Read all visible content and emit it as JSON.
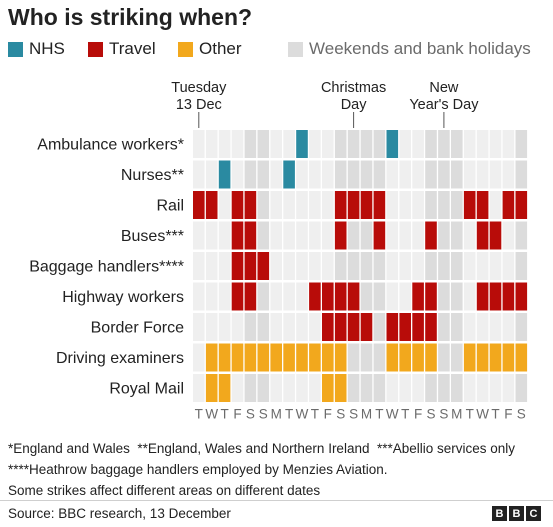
{
  "title": "Who is striking when?",
  "legend": [
    {
      "label": "NHS",
      "color": "#2a8aa1",
      "key": "nhs"
    },
    {
      "label": "Travel",
      "color": "#b80c09",
      "key": "travel"
    },
    {
      "label": "Other",
      "color": "#f2a81d",
      "key": "other"
    },
    {
      "label": "Weekends and bank holidays",
      "color": "#dcdcdc",
      "key": "holiday"
    }
  ],
  "chart_data": {
    "type": "heatmap",
    "title": "Who is striking when?",
    "columns": [
      "T",
      "W",
      "T",
      "F",
      "S",
      "S",
      "M",
      "T",
      "W",
      "T",
      "F",
      "S",
      "S",
      "M",
      "T",
      "W",
      "T",
      "F",
      "S",
      "S",
      "M",
      "T",
      "W",
      "T",
      "F",
      "S"
    ],
    "column_dates": [
      "2022-12-13",
      "2022-12-14",
      "2022-12-15",
      "2022-12-16",
      "2022-12-17",
      "2022-12-18",
      "2022-12-19",
      "2022-12-20",
      "2022-12-21",
      "2022-12-22",
      "2022-12-23",
      "2022-12-24",
      "2022-12-25",
      "2022-12-26",
      "2022-12-27",
      "2022-12-28",
      "2022-12-29",
      "2022-12-30",
      "2022-12-31",
      "2023-01-01",
      "2023-01-02",
      "2023-01-03",
      "2023-01-04",
      "2023-01-05",
      "2023-01-06",
      "2023-01-07"
    ],
    "weekends_and_bank_holidays": [
      4,
      5,
      11,
      12,
      13,
      14,
      18,
      19,
      20,
      25
    ],
    "date_markers": [
      {
        "column": 0,
        "lines": [
          "Tuesday",
          "13 Dec"
        ]
      },
      {
        "column": 12,
        "lines": [
          "Christmas",
          "Day"
        ]
      },
      {
        "column": 19,
        "lines": [
          "New",
          "Year's Day"
        ]
      }
    ],
    "rows": [
      {
        "label": "Ambulance workers*",
        "category": "nhs",
        "strike_days": [
          8,
          15
        ]
      },
      {
        "label": "Nurses**",
        "category": "nhs",
        "strike_days": [
          2,
          7
        ]
      },
      {
        "label": "Rail",
        "category": "travel",
        "strike_days": [
          0,
          1,
          3,
          4,
          11,
          12,
          13,
          14,
          21,
          22,
          24,
          25
        ]
      },
      {
        "label": "Buses***",
        "category": "travel",
        "strike_days": [
          3,
          4,
          11,
          14,
          18,
          22,
          23
        ]
      },
      {
        "label": "Baggage handlers****",
        "category": "other",
        "color_category": "travel",
        "strike_days": [
          3,
          4,
          5
        ]
      },
      {
        "label": "Highway workers",
        "category": "other",
        "color_category": "travel",
        "strike_days": [
          3,
          4,
          9,
          10,
          11,
          12,
          17,
          18,
          22,
          23,
          24,
          25
        ]
      },
      {
        "label": "Border Force",
        "category": "other",
        "color_category": "travel",
        "strike_days": [
          10,
          11,
          12,
          13,
          15,
          16,
          17,
          18
        ]
      },
      {
        "label": "Driving examiners",
        "category": "other",
        "strike_days": [
          1,
          2,
          3,
          4,
          5,
          6,
          7,
          8,
          9,
          10,
          11,
          15,
          16,
          17,
          18,
          21,
          22,
          23,
          24,
          25
        ]
      },
      {
        "label": "Royal Mail",
        "category": "other",
        "strike_days": [
          1,
          2,
          10,
          11
        ]
      }
    ]
  },
  "notes": [
    "*England and Wales  **England, Wales and Northern Ireland  ***Abellio services only",
    "****Heathrow baggage handlers employed by Menzies Aviation.",
    "Some strikes affect different areas on different dates"
  ],
  "source": "Source: BBC research, 13 December",
  "logo_letters": [
    "B",
    "B",
    "C"
  ],
  "colors": {
    "empty_cell": "#efefef",
    "holiday_cell": "#dcdcdc",
    "axis_text": "#6b6b6b"
  }
}
